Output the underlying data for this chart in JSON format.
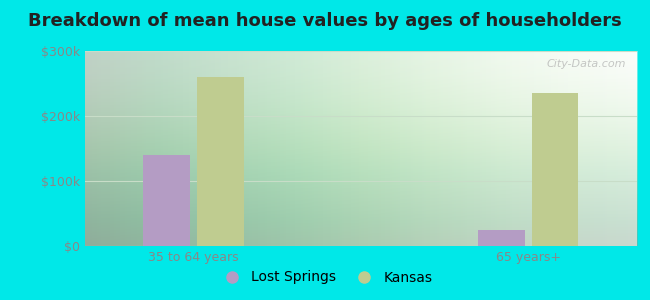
{
  "title": "Breakdown of mean house values by ages of householders",
  "categories": [
    "35 to 64 years",
    "65 years+"
  ],
  "lost_springs_values": [
    140000,
    25000
  ],
  "kansas_values": [
    260000,
    235000
  ],
  "lost_springs_color": "#b49cc4",
  "kansas_color": "#bfcc90",
  "background_color": "#00e8e8",
  "ylim": [
    0,
    300000
  ],
  "yticks": [
    0,
    100000,
    200000,
    300000
  ],
  "ytick_labels": [
    "$0",
    "$100k",
    "$200k",
    "$300k"
  ],
  "legend_labels": [
    "Lost Springs",
    "Kansas"
  ],
  "bar_width": 0.28,
  "title_fontsize": 13,
  "tick_fontsize": 9,
  "legend_fontsize": 10,
  "grid_color": "#c8ddc8",
  "tick_color": "#888888"
}
